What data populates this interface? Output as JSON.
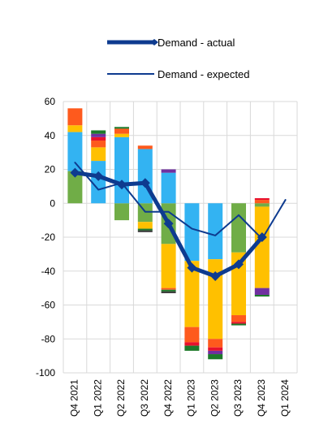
{
  "chart_data": {
    "type": "bar",
    "categories": [
      "Q4 2021",
      "Q1 2022",
      "Q2 2022",
      "Q3 2022",
      "Q4 2022",
      "Q1 2023",
      "Q2 2023",
      "Q3 2023",
      "Q4 2023",
      "Q1 2024"
    ],
    "ylim": [
      -100,
      60
    ],
    "yticks": [
      60,
      40,
      20,
      0,
      -20,
      -40,
      -60,
      -80,
      -100
    ],
    "grid": true,
    "legend_position": "top",
    "stacked_components": [
      {
        "color": "#70ad47",
        "values": [
          19,
          0,
          -10,
          -11,
          -24,
          0,
          0,
          -29,
          -2,
          null
        ]
      },
      {
        "color": "#33b3f2",
        "values": [
          23,
          25,
          39,
          32,
          18,
          -34,
          -33,
          0,
          0,
          null
        ]
      },
      {
        "color": "#ffc000",
        "values": [
          4,
          8,
          2,
          -4,
          -26,
          -39,
          -47,
          -37,
          -48,
          null
        ]
      },
      {
        "color": "#fe5a1d",
        "values": [
          10,
          4,
          3,
          2,
          -1,
          -9,
          -5,
          -4,
          2,
          null
        ]
      },
      {
        "color": "#e8112d",
        "values": [
          0,
          2,
          0,
          0,
          0,
          -2,
          -2,
          -1,
          1,
          null
        ]
      },
      {
        "color": "#7030a0",
        "values": [
          0,
          2,
          0,
          0,
          2,
          0,
          -2,
          0,
          -4,
          null
        ]
      },
      {
        "color": "#1d7a2a",
        "values": [
          0,
          2,
          1,
          -1,
          -1,
          -3,
          -3,
          -1,
          -1,
          null
        ]
      },
      {
        "color": "#333333",
        "values": [
          0,
          0,
          0,
          -1,
          -1,
          0,
          0,
          0,
          0,
          null
        ]
      }
    ],
    "series": [
      {
        "name": "Demand - actual",
        "color": "#0e3b8f",
        "width": 5,
        "marker": "diamond",
        "values": [
          18,
          16,
          11,
          12,
          -12,
          -38,
          -43,
          -36,
          -20,
          null
        ]
      },
      {
        "name": "Demand - expected",
        "color": "#0e3b8f",
        "width": 2,
        "values": [
          24,
          8,
          12,
          -5,
          -5,
          -15,
          -19,
          -7,
          -21,
          2
        ]
      }
    ]
  },
  "legend": {
    "actual_label": "Demand - actual",
    "expected_label": "Demand - expected"
  }
}
